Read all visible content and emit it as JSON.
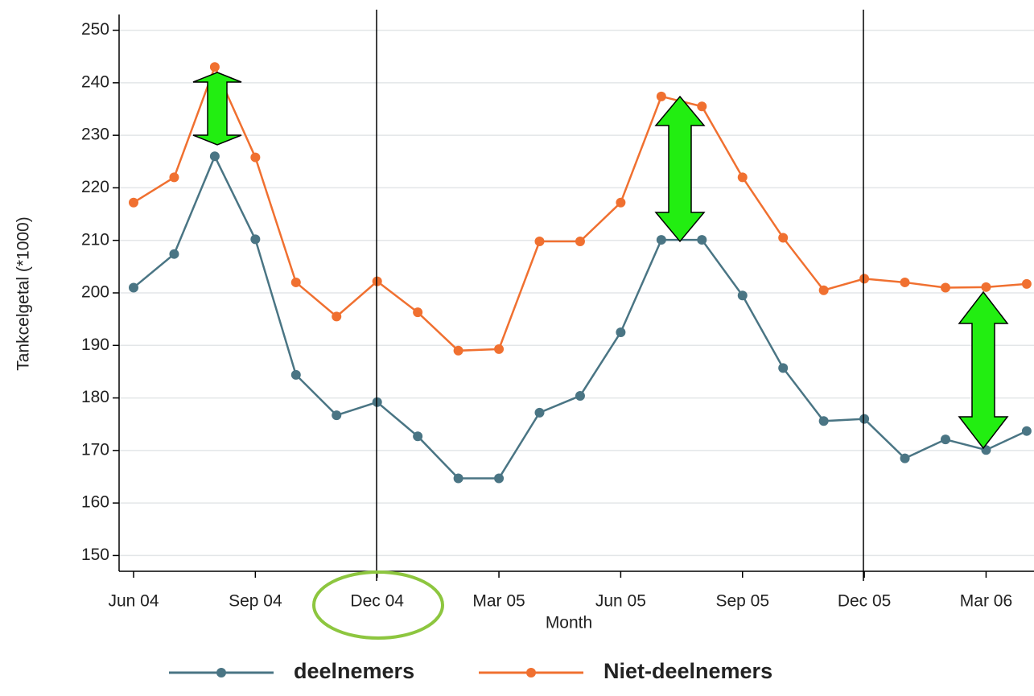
{
  "chart_data": {
    "type": "line",
    "y_label": "Tankcelgetal (*1000)",
    "x_label": "Month",
    "categories": [
      "Jun 04",
      null,
      null,
      "Sep 04",
      null,
      null,
      "Dec 04",
      null,
      null,
      "Mar 05",
      null,
      null,
      "Jun 05",
      null,
      null,
      "Sep 05",
      null,
      null,
      "Dec 05",
      null,
      null,
      "Mar 06",
      null
    ],
    "series": [
      {
        "name": "deelnemers",
        "color": "#4a7584",
        "values": [
          201.0,
          207.4,
          226.0,
          210.2,
          184.4,
          176.7,
          179.2,
          172.7,
          164.7,
          164.7,
          177.2,
          180.4,
          192.5,
          210.1,
          210.1,
          199.5,
          185.7,
          175.6,
          176.0,
          168.5,
          172.1,
          170.1,
          173.7
        ]
      },
      {
        "name": "Niet-deelnemers",
        "color": "#f07030",
        "values": [
          217.2,
          222.0,
          243.0,
          225.8,
          202.0,
          195.5,
          202.2,
          196.3,
          189.0,
          189.3,
          209.8,
          209.8,
          217.2,
          237.4,
          235.5,
          222.0,
          210.5,
          200.5,
          202.7,
          202.0,
          201.0,
          201.1,
          201.7
        ]
      }
    ],
    "ylim": [
      147,
      253
    ],
    "yticks": [
      150,
      160,
      170,
      180,
      190,
      200,
      210,
      220,
      230,
      240,
      250
    ],
    "grid": true,
    "legend": "bottom"
  }
}
